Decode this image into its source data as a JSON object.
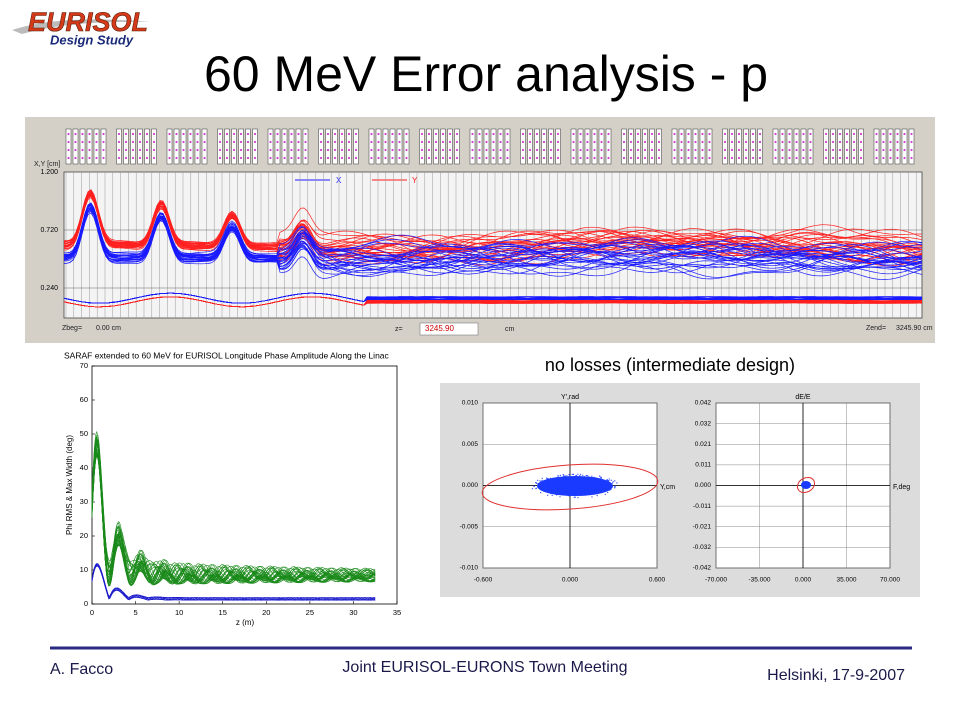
{
  "logo": {
    "name": "EURISOL",
    "subtitle": "Design Study"
  },
  "title": "60 MeV Error analysis - p",
  "envelope_plot": {
    "ylabel": "X,Y [cm]",
    "yticks": [
      "1.200",
      "0.720",
      "0.240"
    ],
    "legend": [
      "X",
      "Y"
    ],
    "zbeg_label": "Zbeg=",
    "zbeg_value": "0.00 cm",
    "z_label": "z=",
    "z_value": "3245.90",
    "z_unit": "cm",
    "zend_label": "Zend=",
    "zend_value": "3245.90 cm"
  },
  "phase_plot": {
    "title": "SARAF extended to 60 MeV for EURISOL Longitude Phase Amplitude Along the Linac",
    "ylabel": "Phi RMS & Max Width (deg)",
    "xlabel": "z (m)",
    "yticks": [
      0,
      10,
      20,
      30,
      40,
      50,
      60,
      70
    ],
    "xticks": [
      0,
      5,
      10,
      15,
      20,
      25,
      30,
      35
    ]
  },
  "caption": "no losses (intermediate design)",
  "transverse_plot": {
    "ylabel": "Y',rad",
    "xlabel": "Y,cm",
    "yticks": [
      "0.010",
      "0.005",
      "0.000",
      "-0.005",
      "-0.010"
    ],
    "xticks": [
      "-0.600",
      "0.000",
      "0.600"
    ]
  },
  "longitudinal_plot": {
    "ylabel": "dE/E",
    "xlabel": "F,deg",
    "yticks": [
      "0.042",
      "0.032",
      "0.021",
      "0.011",
      "0.000",
      "-0.011",
      "-0.021",
      "-0.032",
      "-0.042"
    ],
    "xticks": [
      "-70.000",
      "-35.000",
      "0.000",
      "35.000",
      "70.000"
    ]
  },
  "footer": {
    "author": "A. Facco",
    "event": "Joint EURISOL-EURONS Town Meeting",
    "place_date": "Helsinki, 17-9-2007"
  }
}
